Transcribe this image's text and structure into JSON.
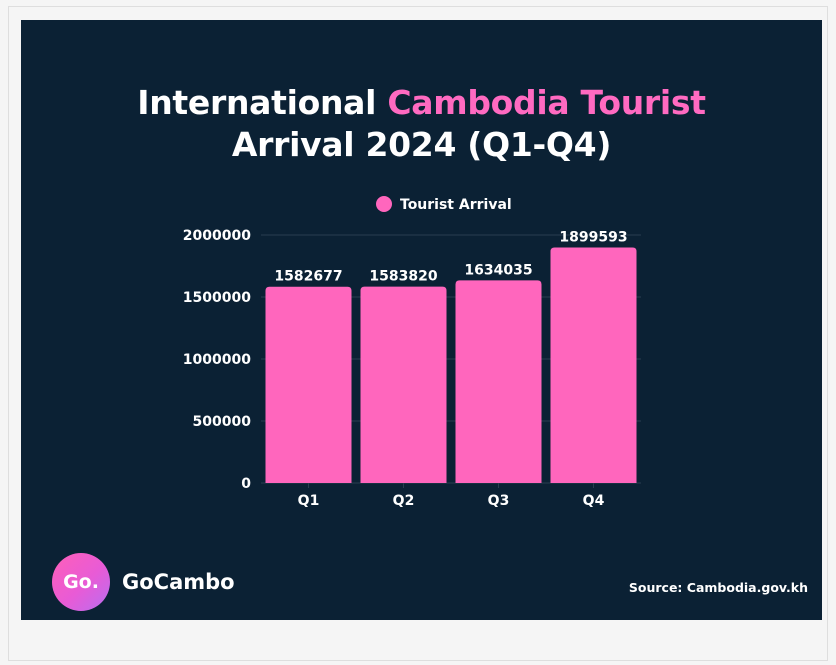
{
  "title_part1": "International ",
  "title_highlight": "Cambodia Tourist",
  "title_part2": "Arrival 2024 (Q1-Q4)",
  "brand": {
    "logo_text": "Go.",
    "name": "GoCambo"
  },
  "source": "Source: Cambodia.gov.kh",
  "colors": {
    "background": "#0b2134",
    "bar": "#ff66bd",
    "accent": "#ff6ac1",
    "text": "#ffffff"
  },
  "chart_data": {
    "type": "bar",
    "title": "International Cambodia Tourist Arrival 2024 (Q1-Q4)",
    "categories": [
      "Q1",
      "Q2",
      "Q3",
      "Q4"
    ],
    "series": [
      {
        "name": "Tourist Arrival",
        "values": [
          1582677,
          1583820,
          1634035,
          1899593
        ]
      }
    ],
    "value_labels": [
      "1582677",
      "1583820",
      "1634035",
      "1899593"
    ],
    "ylim": [
      0,
      2000000
    ],
    "yticks": [
      0,
      500000,
      1000000,
      1500000,
      2000000
    ],
    "ytick_labels": [
      "0",
      "500000",
      "1000000",
      "1500000",
      "2000000"
    ],
    "xlabel": "",
    "ylabel": "",
    "legend": "top-center",
    "grid": true
  }
}
